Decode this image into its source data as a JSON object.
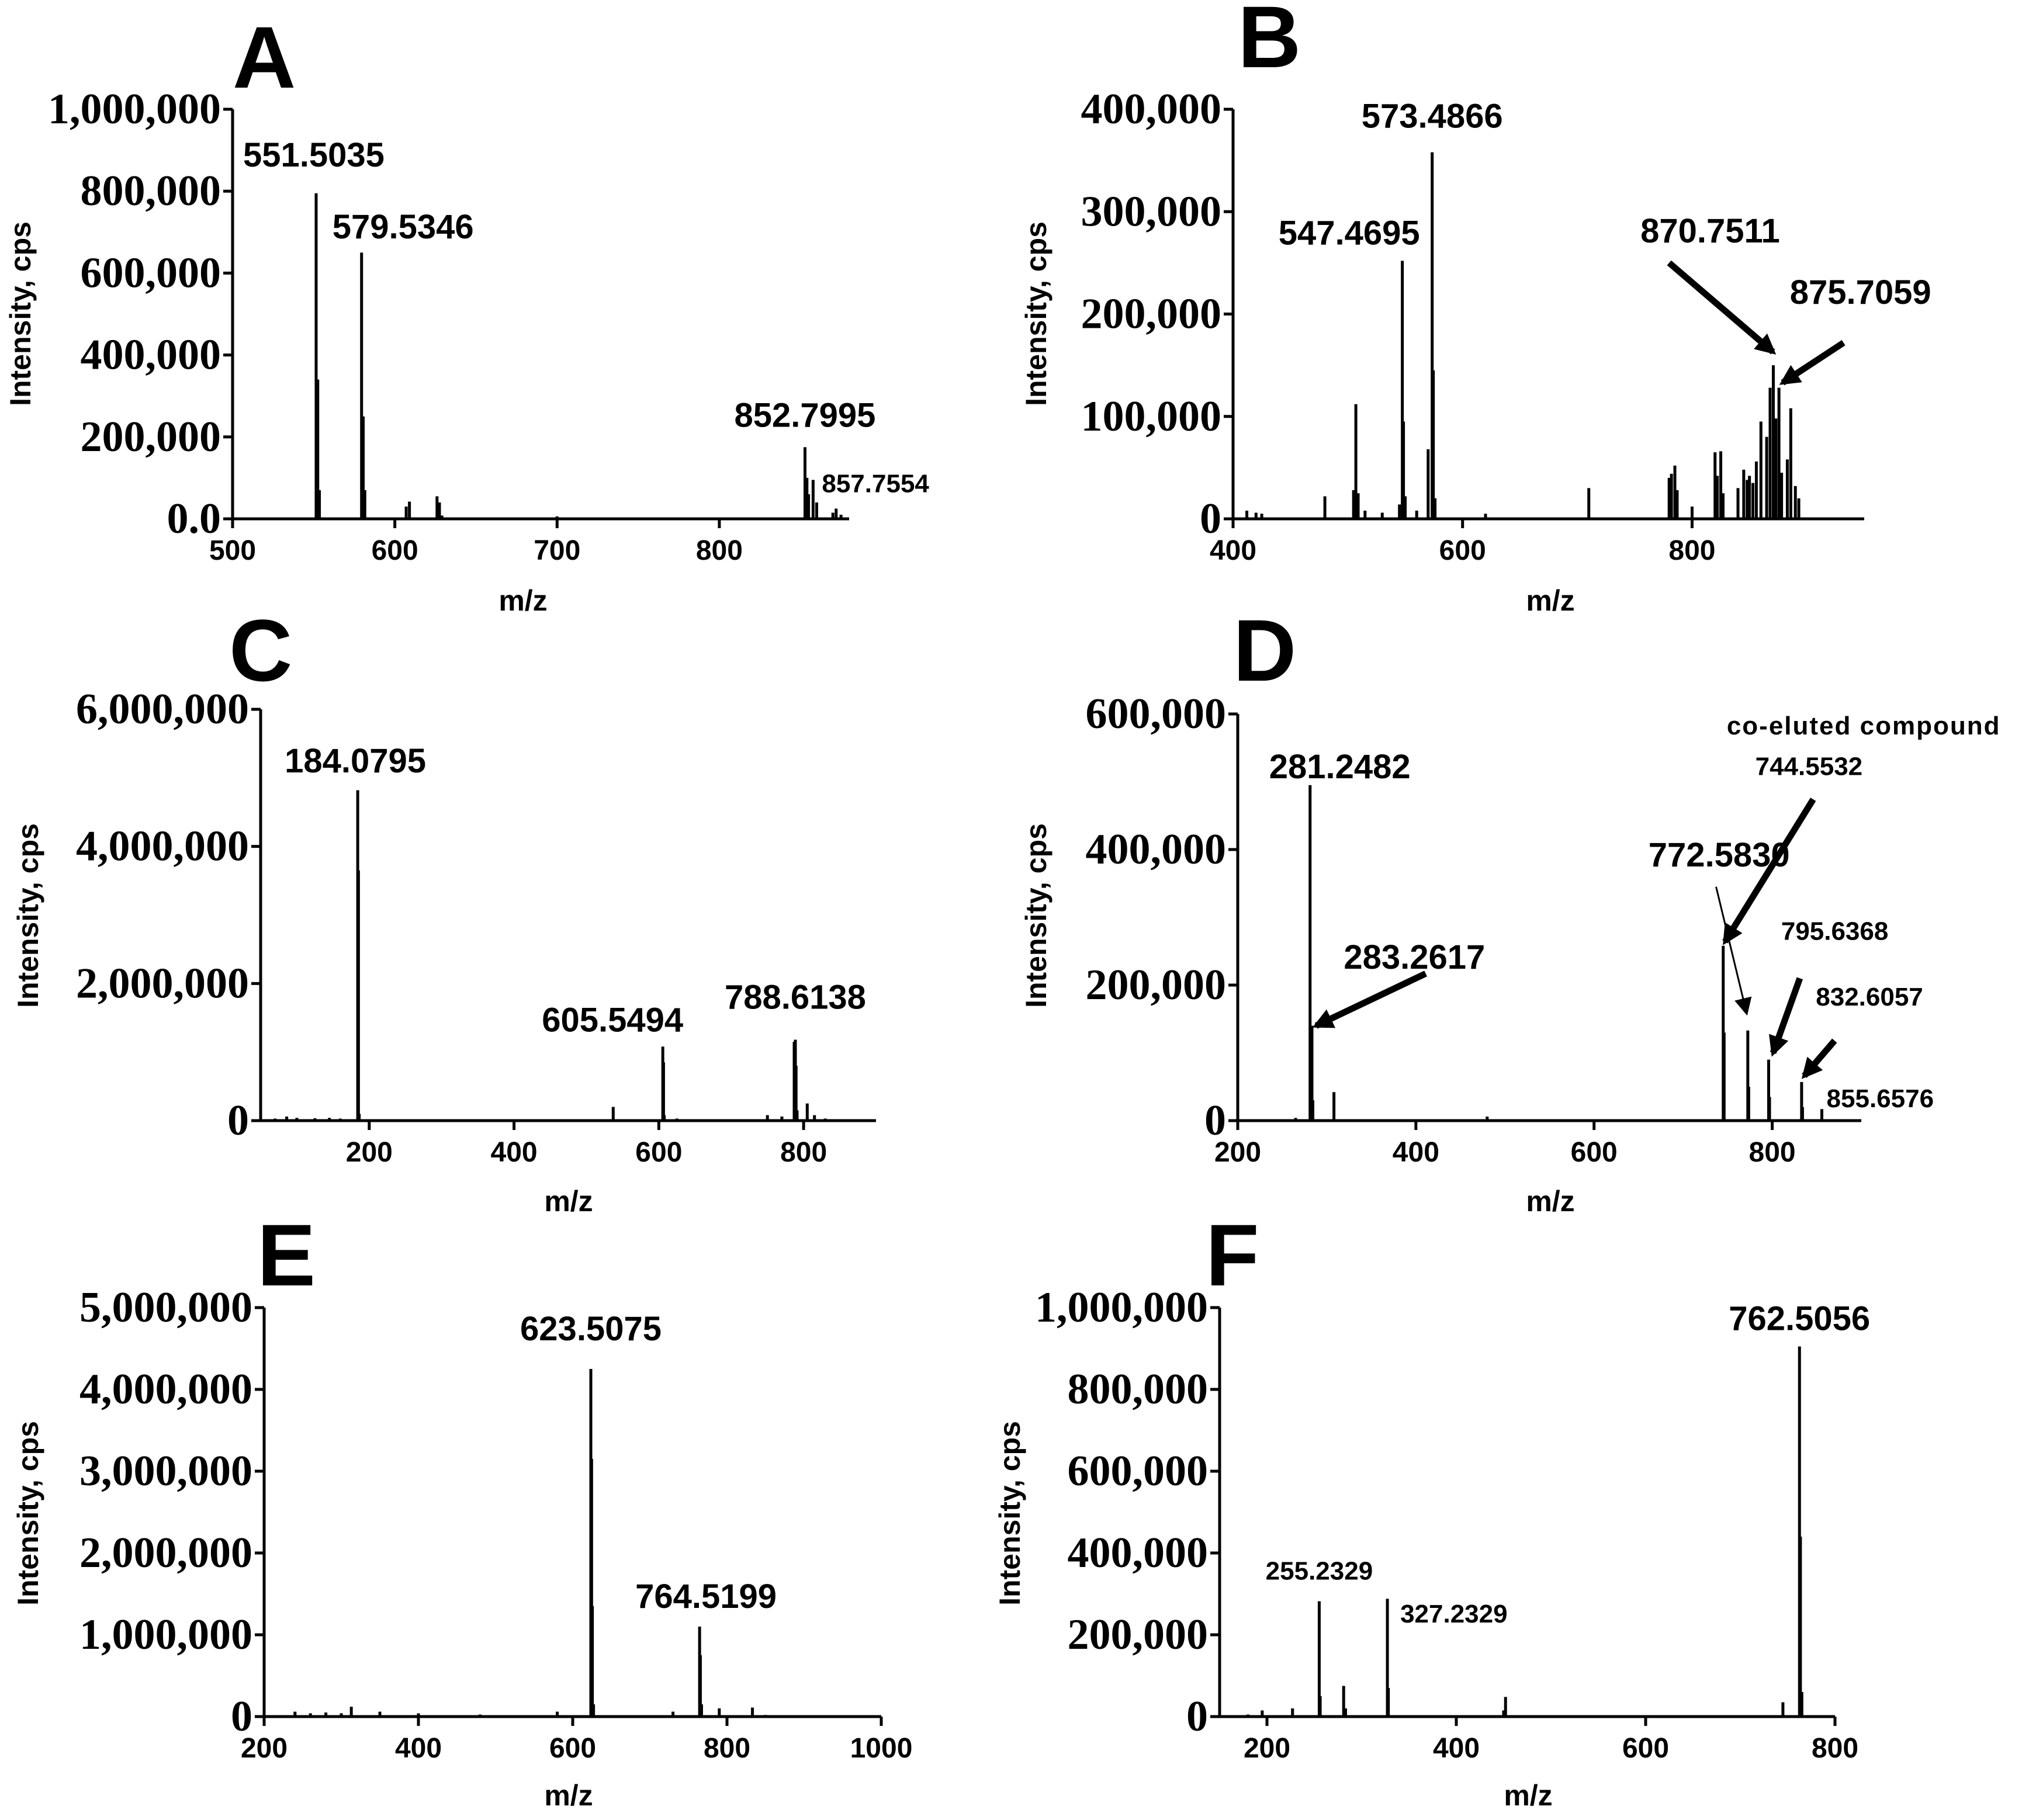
{
  "figure": {
    "y_axis_label": "Intensity, cps",
    "x_axis_label": "m/z",
    "colors": {
      "background": "#ffffff",
      "ink": "#000000"
    }
  },
  "chart_data": [
    {
      "id": "A",
      "type": "bar",
      "letter": "A",
      "title": "",
      "xlabel": "m/z",
      "ylabel": "Intensity, cps",
      "xlim": [
        500,
        880
      ],
      "ylim": [
        0,
        1000000
      ],
      "xticks": [
        {
          "v": 500,
          "t": "500"
        },
        {
          "v": 600,
          "t": "600"
        },
        {
          "v": 700,
          "t": "700"
        },
        {
          "v": 800,
          "t": "800"
        }
      ],
      "yticks": [
        {
          "v": 0,
          "t": "0.0"
        },
        {
          "v": 200000,
          "t": "200,000"
        },
        {
          "v": 400000,
          "t": "400,000"
        },
        {
          "v": 600000,
          "t": "600,000"
        },
        {
          "v": 800000,
          "t": "800,000"
        },
        {
          "v": 1000000,
          "t": "1,000,000"
        }
      ],
      "peaks": [
        [
          551.5,
          795000
        ],
        [
          552.5,
          340000
        ],
        [
          553.5,
          70000
        ],
        [
          579.5,
          650000
        ],
        [
          580.5,
          250000
        ],
        [
          581.5,
          70000
        ],
        [
          607,
          30000
        ],
        [
          609,
          42000
        ],
        [
          626,
          55000
        ],
        [
          627.5,
          40000
        ],
        [
          629,
          8000
        ],
        [
          700,
          6000
        ],
        [
          852.8,
          175000
        ],
        [
          854,
          100000
        ],
        [
          855,
          60000
        ],
        [
          857.8,
          95000
        ],
        [
          860,
          40000
        ],
        [
          870,
          15000
        ],
        [
          872,
          25000
        ],
        [
          875,
          10000
        ]
      ],
      "labels": [
        {
          "text": "551.5035",
          "size": "big",
          "x": 551.5,
          "y": 860000,
          "anchor": "start",
          "dx": -125
        },
        {
          "text": "579.5346",
          "size": "big",
          "x": 579.5,
          "y": 685000,
          "anchor": "start",
          "dx": -50
        },
        {
          "text": "852.7995",
          "size": "big",
          "x": 852.8,
          "y": 225000,
          "anchor": "middle",
          "dx": 0
        },
        {
          "text": "857.7554",
          "size": "small",
          "x": 857.8,
          "y": 65000,
          "anchor": "start",
          "dx": 15
        }
      ],
      "arrows": []
    },
    {
      "id": "B",
      "type": "bar",
      "letter": "B",
      "title": "",
      "xlabel": "m/z",
      "ylabel": "Intensity, cps",
      "xlim": [
        400,
        950
      ],
      "ylim": [
        0,
        400000
      ],
      "xticks": [
        {
          "v": 400,
          "t": "400"
        },
        {
          "v": 600,
          "t": "600"
        },
        {
          "v": 800,
          "t": "800"
        }
      ],
      "yticks": [
        {
          "v": 0,
          "t": "0"
        },
        {
          "v": 100000,
          "t": "100,000"
        },
        {
          "v": 200000,
          "t": "200,000"
        },
        {
          "v": 300000,
          "t": "300,000"
        },
        {
          "v": 400000,
          "t": "400,000"
        }
      ],
      "peaks": [
        [
          412,
          8000
        ],
        [
          420,
          6000
        ],
        [
          425,
          5000
        ],
        [
          480,
          22000
        ],
        [
          505,
          28000
        ],
        [
          507,
          112000
        ],
        [
          509,
          25000
        ],
        [
          515,
          8000
        ],
        [
          530,
          6000
        ],
        [
          545,
          14000
        ],
        [
          547.5,
          252000
        ],
        [
          548.5,
          95000
        ],
        [
          550,
          22000
        ],
        [
          560,
          8000
        ],
        [
          570,
          68000
        ],
        [
          573.5,
          358000
        ],
        [
          574.5,
          145000
        ],
        [
          576,
          20000
        ],
        [
          620,
          5000
        ],
        [
          710,
          30000
        ],
        [
          780,
          40000
        ],
        [
          782,
          44000
        ],
        [
          785,
          52000
        ],
        [
          787,
          28000
        ],
        [
          800,
          12000
        ],
        [
          820,
          65000
        ],
        [
          822,
          42000
        ],
        [
          825,
          66000
        ],
        [
          827,
          25000
        ],
        [
          840,
          30000
        ],
        [
          845,
          48000
        ],
        [
          848,
          38000
        ],
        [
          850,
          42000
        ],
        [
          853,
          35000
        ],
        [
          856,
          56000
        ],
        [
          860,
          95000
        ],
        [
          865,
          80000
        ],
        [
          868,
          128000
        ],
        [
          870.8,
          150000
        ],
        [
          873,
          98000
        ],
        [
          875.7,
          128000
        ],
        [
          878,
          45000
        ],
        [
          883,
          58000
        ],
        [
          886,
          108000
        ],
        [
          890,
          32000
        ],
        [
          893,
          20000
        ]
      ],
      "labels": [
        {
          "text": "573.4866",
          "size": "big",
          "x": 573.5,
          "y": 382000,
          "anchor": "middle",
          "dx": 0
        },
        {
          "text": "547.4695",
          "size": "big",
          "x": 547.5,
          "y": 268000,
          "anchor": "end",
          "dx": 30
        },
        {
          "text": "870.7511",
          "size": "big",
          "x": 755,
          "y": 270000,
          "anchor": "start",
          "dx": 0
        },
        {
          "text": "875.7059",
          "size": "big",
          "x": 875,
          "y": 210000,
          "anchor": "start",
          "dx": 20
        }
      ],
      "arrows": [
        [
          780,
          250000,
          870.5,
          163000
        ],
        [
          932,
          172000,
          879,
          133000
        ]
      ]
    },
    {
      "id": "C",
      "type": "bar",
      "letter": "C",
      "title": "",
      "xlabel": "m/z",
      "ylabel": "Intensity, cps",
      "xlim": [
        50,
        900
      ],
      "ylim": [
        0,
        6000000
      ],
      "xticks": [
        {
          "v": 200,
          "t": "200"
        },
        {
          "v": 400,
          "t": "400"
        },
        {
          "v": 600,
          "t": "600"
        },
        {
          "v": 800,
          "t": "800"
        }
      ],
      "yticks": [
        {
          "v": 0,
          "t": "0"
        },
        {
          "v": 2000000,
          "t": "2,000,000"
        },
        {
          "v": 4000000,
          "t": "4,000,000"
        },
        {
          "v": 6000000,
          "t": "6,000,000"
        }
      ],
      "peaks": [
        [
          70,
          30000
        ],
        [
          86,
          60000
        ],
        [
          100,
          40000
        ],
        [
          125,
          35000
        ],
        [
          145,
          40000
        ],
        [
          160,
          30000
        ],
        [
          184.1,
          4820000
        ],
        [
          185.1,
          3650000
        ],
        [
          186.1,
          100000
        ],
        [
          260,
          20000
        ],
        [
          537,
          200000
        ],
        [
          605.5,
          1080000
        ],
        [
          606.5,
          850000
        ],
        [
          607.5,
          80000
        ],
        [
          625,
          30000
        ],
        [
          750,
          80000
        ],
        [
          770,
          60000
        ],
        [
          787,
          1150000
        ],
        [
          788.6,
          1180000
        ],
        [
          789.6,
          800000
        ],
        [
          791,
          150000
        ],
        [
          805,
          250000
        ],
        [
          815,
          80000
        ],
        [
          830,
          30000
        ]
      ],
      "labels": [
        {
          "text": "184.0795",
          "size": "big",
          "x": 184.1,
          "y": 5080000,
          "anchor": "start",
          "dx": -125
        },
        {
          "text": "605.5494",
          "size": "big",
          "x": 605.5,
          "y": 1300000,
          "anchor": "end",
          "dx": 35
        },
        {
          "text": "788.6138",
          "size": "big",
          "x": 788.6,
          "y": 1630000,
          "anchor": "middle",
          "dx": 0
        }
      ],
      "arrows": []
    },
    {
      "id": "D",
      "type": "bar",
      "letter": "D",
      "title": "",
      "xlabel": "m/z",
      "ylabel": "Intensity, cps",
      "xlim": [
        200,
        900
      ],
      "ylim": [
        0,
        600000
      ],
      "xticks": [
        {
          "v": 200,
          "t": "200"
        },
        {
          "v": 400,
          "t": "400"
        },
        {
          "v": 600,
          "t": "600"
        },
        {
          "v": 800,
          "t": "800"
        }
      ],
      "yticks": [
        {
          "v": 0,
          "t": "0"
        },
        {
          "v": 200000,
          "t": "200,000"
        },
        {
          "v": 400000,
          "t": "400,000"
        },
        {
          "v": 600000,
          "t": "600,000"
        }
      ],
      "peaks": [
        [
          265,
          4000
        ],
        [
          281.2,
          495000
        ],
        [
          282.2,
          135000
        ],
        [
          283.3,
          140000
        ],
        [
          284.3,
          30000
        ],
        [
          308,
          42000
        ],
        [
          480,
          6000
        ],
        [
          745,
          258000
        ],
        [
          746,
          130000
        ],
        [
          772.6,
          133000
        ],
        [
          773.6,
          50000
        ],
        [
          796,
          90000
        ],
        [
          797,
          35000
        ],
        [
          833,
          57000
        ],
        [
          834,
          20000
        ],
        [
          855.7,
          17000
        ]
      ],
      "labels": [
        {
          "text": "281.2482",
          "size": "big",
          "x": 281.2,
          "y": 505000,
          "anchor": "start",
          "dx": -70
        },
        {
          "text": "283.2617",
          "size": "big",
          "x": 319,
          "y": 224000,
          "anchor": "start",
          "dx": 0
        },
        {
          "text": "772.5830",
          "size": "big",
          "x": 661,
          "y": 375000,
          "anchor": "start",
          "dx": 0
        },
        {
          "text": "795.6368",
          "size": "small",
          "x": 810,
          "y": 267000,
          "anchor": "start",
          "dx": 0
        },
        {
          "text": "832.6057",
          "size": "small",
          "x": 849,
          "y": 170000,
          "anchor": "start",
          "dx": 0
        },
        {
          "text": "855.6576",
          "size": "small",
          "x": 861,
          "y": 20000,
          "anchor": "start",
          "dx": 0
        },
        {
          "text": "744.5532",
          "size": "small",
          "x": 781,
          "y": 510000,
          "anchor": "start",
          "dx": 0
        }
      ],
      "note": {
        "text": "co-eluted compound",
        "x": 749,
        "y": 570000
      },
      "arrows": [
        [
          411,
          217000,
          288,
          140000
        ],
        [
          846,
          474000,
          747,
          264000
        ],
        [
          831,
          210000,
          801,
          100000
        ],
        [
          870,
          118000,
          836,
          66000
        ]
      ],
      "thin_arrows": [
        [
          737,
          345000,
          771,
          160000
        ]
      ]
    },
    {
      "id": "E",
      "type": "bar",
      "letter": "E",
      "title": "",
      "xlabel": "m/z",
      "ylabel": "Intensity, cps",
      "xlim": [
        200,
        1000
      ],
      "ylim": [
        0,
        5000000
      ],
      "xticks": [
        {
          "v": 200,
          "t": "200"
        },
        {
          "v": 400,
          "t": "400"
        },
        {
          "v": 600,
          "t": "600"
        },
        {
          "v": 800,
          "t": "800"
        },
        {
          "v": 1000,
          "t": "1000"
        }
      ],
      "yticks": [
        {
          "v": 0,
          "t": "0"
        },
        {
          "v": 1000000,
          "t": "1,000,000"
        },
        {
          "v": 2000000,
          "t": "2,000,000"
        },
        {
          "v": 3000000,
          "t": "3,000,000"
        },
        {
          "v": 4000000,
          "t": "4,000,000"
        },
        {
          "v": 5000000,
          "t": "5,000,000"
        }
      ],
      "peaks": [
        [
          240,
          60000
        ],
        [
          260,
          40000
        ],
        [
          280,
          50000
        ],
        [
          300,
          40000
        ],
        [
          313,
          120000
        ],
        [
          350,
          60000
        ],
        [
          400,
          40000
        ],
        [
          480,
          25000
        ],
        [
          580,
          60000
        ],
        [
          623.5,
          4250000
        ],
        [
          624.5,
          3150000
        ],
        [
          625.5,
          1350000
        ],
        [
          627,
          150000
        ],
        [
          730,
          60000
        ],
        [
          764.5,
          1100000
        ],
        [
          765.5,
          750000
        ],
        [
          767,
          150000
        ],
        [
          790,
          100000
        ],
        [
          833,
          110000
        ],
        [
          850,
          20000
        ]
      ],
      "labels": [
        {
          "text": "623.5075",
          "size": "big",
          "x": 623.5,
          "y": 4600000,
          "anchor": "middle",
          "dx": 0
        },
        {
          "text": "764.5199",
          "size": "big",
          "x": 764.5,
          "y": 1330000,
          "anchor": "start",
          "dx": -110
        }
      ],
      "arrows": []
    },
    {
      "id": "F",
      "type": "bar",
      "letter": "F",
      "title": "",
      "xlabel": "m/z",
      "ylabel": "Intensity, cps",
      "xlim": [
        150,
        800
      ],
      "ylim": [
        0,
        1000000
      ],
      "xticks": [
        {
          "v": 200,
          "t": "200"
        },
        {
          "v": 400,
          "t": "400"
        },
        {
          "v": 600,
          "t": "600"
        },
        {
          "v": 800,
          "t": "800"
        }
      ],
      "yticks": [
        {
          "v": 0,
          "t": "0"
        },
        {
          "v": 200000,
          "t": "200,000"
        },
        {
          "v": 400000,
          "t": "400,000"
        },
        {
          "v": 600000,
          "t": "600,000"
        },
        {
          "v": 800000,
          "t": "800,000"
        },
        {
          "v": 1000000,
          "t": "1,000,000"
        }
      ],
      "peaks": [
        [
          180,
          5000
        ],
        [
          195,
          15000
        ],
        [
          227,
          20000
        ],
        [
          255.2,
          282000
        ],
        [
          256.2,
          50000
        ],
        [
          281,
          75000
        ],
        [
          283,
          20000
        ],
        [
          327.2,
          288000
        ],
        [
          328.2,
          70000
        ],
        [
          450,
          15000
        ],
        [
          452,
          48000
        ],
        [
          745,
          35000
        ],
        [
          762.5,
          905000
        ],
        [
          763.5,
          440000
        ],
        [
          765,
          60000
        ]
      ],
      "labels": [
        {
          "text": "762.5056",
          "size": "big",
          "x": 762.5,
          "y": 945000,
          "anchor": "middle",
          "dx": 0
        },
        {
          "text": "255.2329",
          "size": "small",
          "x": 255.2,
          "y": 335000,
          "anchor": "middle",
          "dx": 0
        },
        {
          "text": "327.2329",
          "size": "small",
          "x": 327.2,
          "y": 230000,
          "anchor": "start",
          "dx": 22
        }
      ],
      "arrows": []
    }
  ]
}
